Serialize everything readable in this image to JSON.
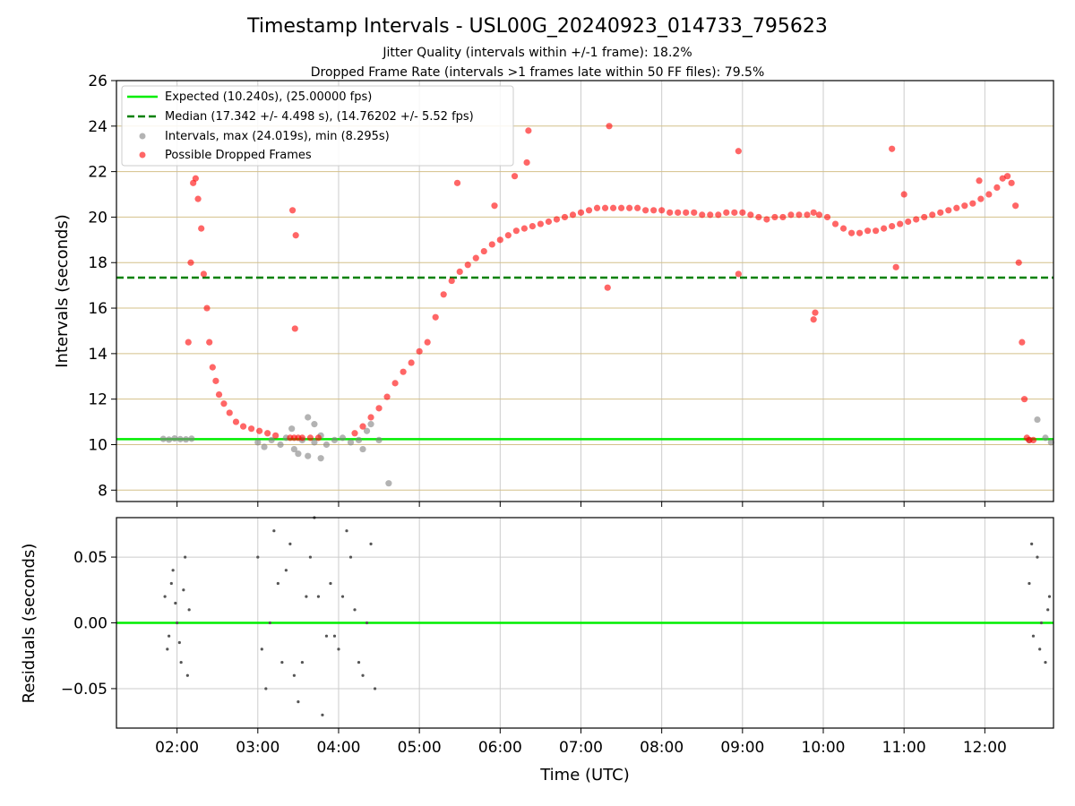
{
  "chart_data": [
    {
      "type": "scatter",
      "title": "Timestamp Intervals - USL00G_20240923_014733_795623",
      "subtitle_1": "Jitter Quality (intervals within +/-1 frame): 18.2%",
      "subtitle_2": "Dropped Frame Rate (intervals >1 frames late within 50 FF files): 79.5%",
      "xlabel": "",
      "ylabel": "Intervals (seconds)",
      "xlim_hours": [
        1.25,
        12.85
      ],
      "ylim": [
        7.5,
        26
      ],
      "yticks": [
        "8",
        "10",
        "12",
        "14",
        "16",
        "18",
        "20",
        "22",
        "24",
        "26"
      ],
      "grid": true,
      "legend_position": "top-left",
      "legend": [
        "Expected (10.240s), (25.00000 fps)",
        "Median (17.342 +/- 4.498 s), (14.76202 +/- 5.52 fps)",
        "Intervals, max (24.019s), min (8.295s)",
        "Possible Dropped Frames"
      ],
      "expected_interval": 10.24,
      "median_interval": 17.342,
      "colors": {
        "expected": "#00ee00",
        "median": "#008000",
        "intervals": "#808080",
        "dropped": "#ff0000",
        "hgrid": "#d4c08a",
        "vgrid": "#cccccc"
      },
      "series": [
        {
          "name": "Intervals, max (24.019s), min (8.295s)",
          "x_hours": [
            1.83,
            1.9,
            1.97,
            2.04,
            2.11,
            2.18,
            3.0,
            3.08,
            3.17,
            3.28,
            3.35,
            3.45,
            3.55,
            3.62,
            3.7,
            3.78,
            3.85,
            3.95,
            4.05,
            4.15,
            4.25,
            4.3,
            4.35,
            4.4,
            4.5,
            3.7,
            3.62,
            3.78,
            3.42,
            3.5,
            4.62,
            12.55,
            12.65,
            12.75,
            12.82
          ],
          "y": [
            10.25,
            10.22,
            10.27,
            10.24,
            10.23,
            10.26,
            10.1,
            9.9,
            10.2,
            10.0,
            10.3,
            9.8,
            10.2,
            9.5,
            10.1,
            10.4,
            10.0,
            10.2,
            10.3,
            10.1,
            10.2,
            9.8,
            10.6,
            10.9,
            10.2,
            10.9,
            11.2,
            9.4,
            10.7,
            9.6,
            8.3,
            10.2,
            11.1,
            10.3,
            10.1
          ]
        },
        {
          "name": "Possible Dropped Frames",
          "x_hours": [
            2.14,
            2.17,
            2.2,
            2.23,
            2.26,
            2.3,
            2.33,
            2.37,
            2.4,
            2.44,
            2.48,
            2.52,
            2.58,
            2.65,
            2.73,
            2.82,
            2.92,
            3.02,
            3.12,
            3.22,
            3.4,
            3.45,
            3.5,
            3.55,
            3.65,
            3.75,
            3.43,
            3.47,
            3.46,
            4.2,
            4.3,
            4.4,
            4.5,
            4.6,
            4.7,
            4.8,
            4.9,
            5.0,
            5.1,
            5.2,
            5.3,
            5.4,
            5.5,
            5.6,
            5.7,
            5.8,
            5.9,
            6.0,
            6.1,
            6.2,
            6.3,
            6.4,
            6.5,
            6.6,
            6.7,
            6.8,
            6.9,
            7.0,
            7.1,
            7.2,
            7.3,
            7.4,
            7.5,
            7.6,
            7.7,
            7.8,
            7.9,
            8.0,
            8.1,
            8.2,
            8.3,
            8.4,
            8.5,
            8.6,
            8.7,
            8.8,
            8.9,
            9.0,
            9.1,
            9.2,
            9.3,
            9.4,
            9.5,
            9.6,
            9.7,
            9.8,
            9.88,
            9.95,
            10.05,
            10.15,
            10.25,
            10.35,
            10.45,
            10.55,
            10.65,
            10.75,
            10.85,
            10.95,
            11.05,
            11.15,
            11.25,
            11.35,
            11.45,
            11.55,
            11.65,
            11.75,
            11.85,
            11.95,
            12.05,
            12.15,
            12.22,
            12.28,
            12.33,
            12.38,
            12.42,
            12.46,
            12.49,
            12.52,
            12.55,
            12.6,
            5.47,
            5.93,
            6.18,
            6.35,
            6.33,
            7.35,
            7.33,
            8.95,
            8.95,
            9.88,
            9.9,
            10.85,
            10.9,
            11.0,
            11.93
          ],
          "y": [
            14.5,
            18.0,
            21.5,
            21.7,
            20.8,
            19.5,
            17.5,
            16.0,
            14.5,
            13.4,
            12.8,
            12.2,
            11.8,
            11.4,
            11.0,
            10.8,
            10.7,
            10.6,
            10.5,
            10.4,
            10.3,
            10.3,
            10.3,
            10.3,
            10.3,
            10.3,
            20.3,
            19.2,
            15.1,
            10.5,
            10.8,
            11.2,
            11.6,
            12.1,
            12.7,
            13.2,
            13.6,
            14.1,
            14.5,
            15.6,
            16.6,
            17.2,
            17.6,
            17.9,
            18.2,
            18.5,
            18.8,
            19.0,
            19.2,
            19.4,
            19.5,
            19.6,
            19.7,
            19.8,
            19.9,
            20.0,
            20.1,
            20.2,
            20.3,
            20.4,
            20.4,
            20.4,
            20.4,
            20.4,
            20.4,
            20.3,
            20.3,
            20.3,
            20.2,
            20.2,
            20.2,
            20.2,
            20.1,
            20.1,
            20.1,
            20.2,
            20.2,
            20.2,
            20.1,
            20.0,
            19.9,
            20.0,
            20.0,
            20.1,
            20.1,
            20.1,
            20.2,
            20.1,
            20.0,
            19.7,
            19.5,
            19.3,
            19.3,
            19.4,
            19.4,
            19.5,
            19.6,
            19.7,
            19.8,
            19.9,
            20.0,
            20.1,
            20.2,
            20.3,
            20.4,
            20.5,
            20.6,
            20.8,
            21.0,
            21.3,
            21.7,
            21.8,
            21.5,
            20.5,
            18.0,
            14.5,
            12.0,
            10.3,
            10.2,
            10.2,
            21.5,
            20.5,
            21.8,
            23.8,
            22.4,
            24.0,
            16.9,
            22.9,
            17.5,
            15.5,
            15.8,
            23.0,
            17.8,
            21.0,
            21.6
          ]
        }
      ]
    },
    {
      "type": "scatter",
      "title": "",
      "xlabel": "Time (UTC)",
      "ylabel": "Residuals (seconds)",
      "xlim_hours": [
        1.25,
        12.85
      ],
      "ylim": [
        -0.08,
        0.08
      ],
      "yticks": [
        "0.05",
        "0.00",
        "−0.05"
      ],
      "xticks": [
        "02:00",
        "03:00",
        "04:00",
        "05:00",
        "06:00",
        "07:00",
        "08:00",
        "09:00",
        "10:00",
        "11:00",
        "12:00"
      ],
      "grid": true,
      "zero_line": 0,
      "series": [
        {
          "name": "",
          "x_hours": [
            1.85,
            1.9,
            1.95,
            2.0,
            2.05,
            2.1,
            2.15,
            1.88,
            1.93,
            1.98,
            2.03,
            2.08,
            2.13,
            3.0,
            3.1,
            3.2,
            3.3,
            3.4,
            3.5,
            3.6,
            3.7,
            3.8,
            3.9,
            4.0,
            4.1,
            4.2,
            4.3,
            4.4,
            4.45,
            3.15,
            3.35,
            3.55,
            3.75,
            3.95,
            4.15,
            4.35,
            3.05,
            3.25,
            3.45,
            3.65,
            3.85,
            4.05,
            4.25,
            12.55,
            12.6,
            12.65,
            12.7,
            12.75,
            12.8,
            12.58,
            12.68,
            12.78
          ],
          "y": [
            0.02,
            -0.01,
            0.04,
            0.0,
            -0.03,
            0.05,
            0.01,
            -0.02,
            0.03,
            0.015,
            -0.015,
            0.025,
            -0.04,
            0.05,
            -0.05,
            0.07,
            -0.03,
            0.06,
            -0.06,
            0.02,
            0.08,
            -0.07,
            0.03,
            -0.02,
            0.07,
            0.01,
            -0.04,
            0.06,
            -0.05,
            0.0,
            0.04,
            -0.03,
            0.02,
            -0.01,
            0.05,
            0.0,
            -0.02,
            0.03,
            -0.04,
            0.05,
            -0.01,
            0.02,
            -0.03,
            0.03,
            -0.01,
            0.05,
            0.0,
            -0.03,
            0.02,
            0.06,
            -0.02,
            0.01
          ]
        }
      ]
    }
  ]
}
